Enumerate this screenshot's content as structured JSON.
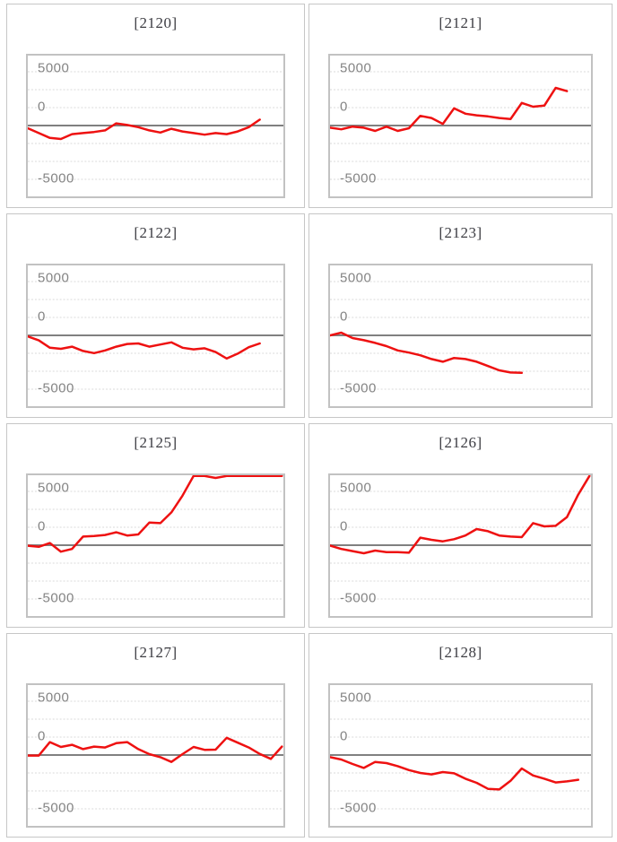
{
  "page": {
    "background": "#ffffff"
  },
  "colors": {
    "series": "#ee1111",
    "gridline": "#dadada",
    "zero_line": "#808080",
    "plot_border": "#c2c2c2",
    "panel_border": "#c6c6c6",
    "title_text": "#3c3c42",
    "axis_label_text": "#848484"
  },
  "axis": {
    "labels": [
      "5000",
      "0",
      "-5000"
    ],
    "tick_values": [
      5000,
      0,
      -5000
    ],
    "ylim": [
      -6700,
      6700
    ],
    "x_axis_labels": "none",
    "grid": "dashed horizontal, solid zero line"
  },
  "chart_data": [
    {
      "type": "line",
      "title": "[2120]",
      "xlabel": "",
      "ylabel": "",
      "legend": "none",
      "values": [
        -250,
        -700,
        -1150,
        -1250,
        -800,
        -700,
        -600,
        -450,
        200,
        50,
        -150,
        -450,
        -650,
        -300,
        -550,
        -700,
        -850,
        -700,
        -800,
        -550,
        -150,
        550
      ]
    },
    {
      "type": "line",
      "title": "[2121]",
      "xlabel": "",
      "ylabel": "",
      "legend": "none",
      "values": [
        -200,
        -350,
        -100,
        -200,
        -500,
        -100,
        -500,
        -250,
        900,
        700,
        150,
        1600,
        1100,
        950,
        850,
        700,
        600,
        2100,
        1750,
        1850,
        3500,
        3200
      ]
    },
    {
      "type": "line",
      "title": "[2122]",
      "xlabel": "",
      "ylabel": "",
      "legend": "none",
      "values": [
        -100,
        -470,
        -1150,
        -1250,
        -1050,
        -1450,
        -1650,
        -1400,
        -1050,
        -800,
        -750,
        -1050,
        -850,
        -650,
        -1150,
        -1300,
        -1200,
        -1550,
        -2150,
        -1700,
        -1100,
        -750
      ]
    },
    {
      "type": "line",
      "title": "[2123]",
      "xlabel": "",
      "ylabel": "",
      "legend": "none",
      "values": [
        0,
        250,
        -250,
        -450,
        -700,
        -1000,
        -1400,
        -1600,
        -1850,
        -2200,
        -2450,
        -2100,
        -2200,
        -2450,
        -2850,
        -3250,
        -3450,
        -3480
      ]
    },
    {
      "type": "line",
      "title": "[2125]",
      "xlabel": "",
      "ylabel": "",
      "legend": "none",
      "values": [
        -50,
        -150,
        200,
        -600,
        -350,
        800,
        850,
        950,
        1200,
        900,
        1000,
        2100,
        2050,
        3050,
        4600,
        6900,
        7200,
        6250,
        6450,
        7100,
        7300,
        7200,
        7300,
        7400
      ]
    },
    {
      "type": "line",
      "title": "[2126]",
      "xlabel": "",
      "ylabel": "",
      "legend": "none",
      "values": [
        -30,
        -350,
        -550,
        -750,
        -500,
        -640,
        -640,
        -700,
        700,
        500,
        360,
        560,
        900,
        1500,
        1300,
        900,
        800,
        750,
        2050,
        1750,
        1800,
        2600,
        4700,
        6500
      ]
    },
    {
      "type": "line",
      "title": "[2127]",
      "xlabel": "",
      "ylabel": "",
      "legend": "none",
      "values": [
        -50,
        -50,
        1200,
        750,
        950,
        550,
        780,
        700,
        1100,
        1200,
        550,
        80,
        -200,
        -640,
        80,
        750,
        480,
        500,
        1600,
        1150,
        700,
        100,
        -360,
        780
      ]
    },
    {
      "type": "line",
      "title": "[2128]",
      "xlabel": "",
      "ylabel": "",
      "legend": "none",
      "values": [
        -200,
        -420,
        -830,
        -1200,
        -640,
        -750,
        -1030,
        -1400,
        -1670,
        -1800,
        -1580,
        -1700,
        -2200,
        -2580,
        -3140,
        -3200,
        -2400,
        -1250,
        -1900,
        -2200,
        -2550,
        -2450,
        -2300
      ]
    }
  ]
}
